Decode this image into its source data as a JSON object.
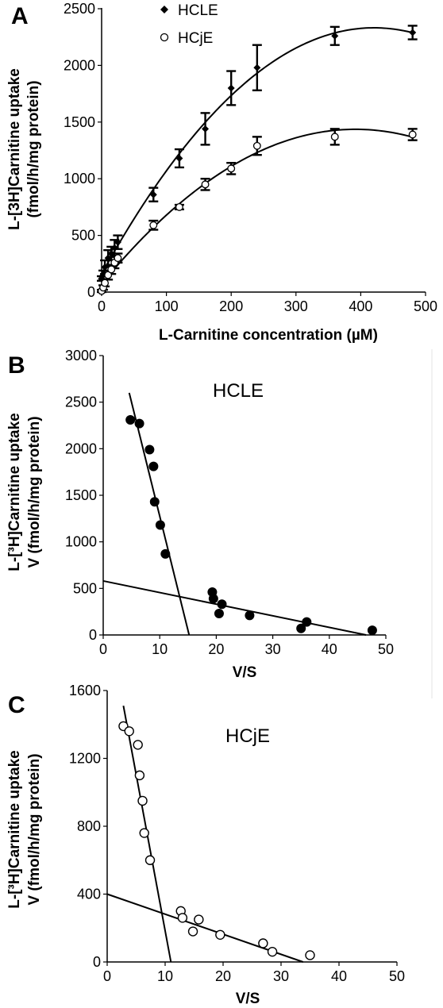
{
  "chart_data": [
    {
      "panel": "A",
      "type": "scatter",
      "xlabel": "L-Carnitine concentration (µM)",
      "ylabel_lines": [
        "L-[3H]Carnitine uptake",
        "(fmol/h/mg protein)"
      ],
      "xlim": [
        0,
        500
      ],
      "ylim": [
        0,
        2500
      ],
      "xticks": [
        "0",
        "100",
        "200",
        "300",
        "400",
        "500"
      ],
      "yticks": [
        "0",
        "500",
        "1000",
        "1500",
        "2000",
        "2500"
      ],
      "legend_position": "top-left",
      "series": [
        {
          "name": "HCLE",
          "marker": "filled diamond",
          "x": [
            0,
            2.5,
            5,
            10,
            15,
            20,
            25,
            80,
            120,
            160,
            200,
            240,
            360,
            480
          ],
          "y": [
            120,
            150,
            220,
            300,
            340,
            390,
            440,
            860,
            1180,
            1440,
            1800,
            1980,
            2260,
            2290
          ],
          "error": [
            20,
            40,
            60,
            70,
            60,
            70,
            60,
            60,
            80,
            140,
            150,
            200,
            80,
            60
          ],
          "fit_curve": "quadratic"
        },
        {
          "name": "HCjE",
          "marker": "open circle",
          "x": [
            0,
            2.5,
            5,
            10,
            15,
            20,
            25,
            80,
            120,
            160,
            200,
            240,
            360,
            480
          ],
          "y": [
            10,
            40,
            80,
            150,
            200,
            260,
            300,
            590,
            750,
            950,
            1090,
            1290,
            1370,
            1390
          ],
          "error": [
            10,
            20,
            30,
            40,
            40,
            50,
            40,
            40,
            20,
            50,
            50,
            80,
            70,
            50
          ],
          "fit_curve": "quadratic"
        }
      ]
    },
    {
      "panel": "B",
      "type": "scatter",
      "annotation": "HCLE",
      "xlabel": "V/S",
      "ylabel_lines": [
        "L-[³H]Carnitine uptake",
        "V (fmol/h/mg protein)"
      ],
      "xlim": [
        0,
        50
      ],
      "ylim": [
        0,
        3000
      ],
      "xticks": [
        "0",
        "10",
        "20",
        "30",
        "40",
        "50"
      ],
      "yticks": [
        "0",
        "500",
        "1000",
        "1500",
        "2000",
        "2500",
        "3000"
      ],
      "marker": "filled circle",
      "points": {
        "x": [
          4.8,
          6.4,
          8.2,
          8.9,
          9.1,
          10.1,
          11.0,
          19.3,
          19.5,
          20.5,
          21.0,
          25.9,
          35.0,
          36.0,
          47.6
        ],
        "y": [
          2310,
          2270,
          1990,
          1810,
          1430,
          1180,
          870,
          460,
          390,
          230,
          330,
          210,
          70,
          140,
          50
        ]
      },
      "fit_lines": [
        {
          "x": [
            4.6,
            15.2
          ],
          "y": [
            2600,
            0
          ]
        },
        {
          "x": [
            0,
            46.5
          ],
          "y": [
            580,
            0
          ]
        }
      ]
    },
    {
      "panel": "C",
      "type": "scatter",
      "annotation": "HCjE",
      "xlabel": "V/S",
      "ylabel_lines": [
        "L-[³H]Carnitine uptake",
        "V (fmol/h/mg protein)"
      ],
      "xlim": [
        0,
        50
      ],
      "ylim": [
        0,
        1600
      ],
      "xticks": [
        "0",
        "10",
        "20",
        "30",
        "40",
        "50"
      ],
      "yticks": [
        "0",
        "400",
        "800",
        "1200",
        "1600"
      ],
      "marker": "open circle",
      "points": {
        "x": [
          2.8,
          3.8,
          5.3,
          5.6,
          6.1,
          6.4,
          7.4,
          12.7,
          13.0,
          14.8,
          15.8,
          19.5,
          26.9,
          28.5,
          35.0
        ],
        "y": [
          1390,
          1360,
          1280,
          1100,
          950,
          760,
          600,
          300,
          260,
          180,
          250,
          160,
          110,
          60,
          40
        ]
      },
      "fit_lines": [
        {
          "x": [
            2.8,
            11.0
          ],
          "y": [
            1510,
            0
          ]
        },
        {
          "x": [
            0,
            33.8
          ],
          "y": [
            400,
            0
          ]
        }
      ]
    }
  ]
}
